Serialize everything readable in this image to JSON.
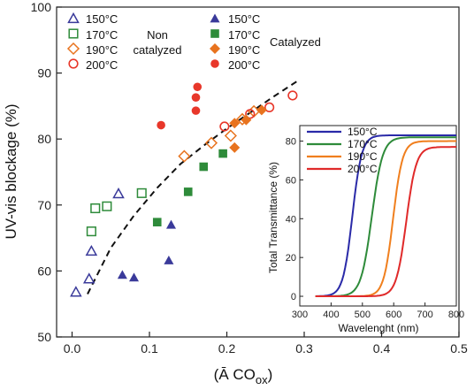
{
  "chart_data": [
    {
      "type": "scatter",
      "xlabel": "(Ā CO",
      "xlabel_sub": "ox",
      "xlabel_close": ")",
      "ylabel": "UV-vis blockage (%)",
      "xlim": [
        -0.02,
        0.5
      ],
      "ylim": [
        50,
        100
      ],
      "xticks": [
        0.0,
        0.1,
        0.2,
        0.3,
        0.4,
        0.5
      ],
      "xtick_labels": [
        "0.0",
        "0.1",
        "0.2",
        "0.3",
        "0.4",
        "0.5"
      ],
      "yticks": [
        50,
        60,
        70,
        80,
        90,
        100
      ],
      "ytick_labels": [
        "50",
        "60",
        "70",
        "80",
        "90",
        "100"
      ],
      "legend": {
        "group1_label_line1": "Non",
        "group1_label_line2": "catalyzed",
        "group2_label": "Catalyzed",
        "entries_left": [
          "150°C",
          "170°C",
          "190°C",
          "200°C"
        ],
        "entries_right": [
          "150°C",
          "170°C",
          "190°C",
          "200°C"
        ]
      },
      "series": [
        {
          "name": "150°C",
          "group": "non-catalyzed",
          "marker": "triangle",
          "filled": false,
          "color": "#3a3a9a",
          "points": [
            [
              0.005,
              56.8
            ],
            [
              0.022,
              58.8
            ],
            [
              0.025,
              63.0
            ],
            [
              0.06,
              71.7
            ]
          ]
        },
        {
          "name": "170°C",
          "group": "non-catalyzed",
          "marker": "square",
          "filled": false,
          "color": "#2e8b3a",
          "points": [
            [
              0.025,
              66.0
            ],
            [
              0.03,
              69.5
            ],
            [
              0.045,
              69.8
            ],
            [
              0.09,
              71.8
            ]
          ]
        },
        {
          "name": "190°C",
          "group": "non-catalyzed",
          "marker": "diamond",
          "filled": false,
          "color": "#e8731e",
          "points": [
            [
              0.145,
              77.4
            ],
            [
              0.18,
              79.4
            ],
            [
              0.205,
              80.5
            ],
            [
              0.22,
              83.0
            ],
            [
              0.235,
              84.2
            ]
          ]
        },
        {
          "name": "200°C",
          "group": "non-catalyzed",
          "marker": "circle",
          "filled": false,
          "color": "#e8372a",
          "points": [
            [
              0.197,
              81.9
            ],
            [
              0.23,
              83.8
            ],
            [
              0.255,
              84.8
            ],
            [
              0.285,
              86.6
            ]
          ]
        },
        {
          "name": "150°C",
          "group": "catalyzed",
          "marker": "triangle",
          "filled": true,
          "color": "#3a3a9a",
          "points": [
            [
              0.065,
              59.4
            ],
            [
              0.08,
              59.0
            ],
            [
              0.125,
              61.6
            ],
            [
              0.128,
              67.0
            ]
          ]
        },
        {
          "name": "170°C",
          "group": "catalyzed",
          "marker": "square",
          "filled": true,
          "color": "#2e8b3a",
          "points": [
            [
              0.11,
              67.4
            ],
            [
              0.15,
              72.0
            ],
            [
              0.17,
              75.8
            ],
            [
              0.195,
              77.8
            ]
          ]
        },
        {
          "name": "190°C",
          "group": "catalyzed",
          "marker": "diamond",
          "filled": true,
          "color": "#e8731e",
          "points": [
            [
              0.21,
              78.7
            ],
            [
              0.21,
              82.4
            ],
            [
              0.225,
              82.9
            ],
            [
              0.245,
              84.4
            ]
          ]
        },
        {
          "name": "200°C",
          "group": "catalyzed",
          "marker": "circle",
          "filled": true,
          "color": "#e8372a",
          "points": [
            [
              0.115,
              82.1
            ],
            [
              0.16,
              84.3
            ],
            [
              0.16,
              86.3
            ],
            [
              0.162,
              87.9
            ]
          ]
        }
      ],
      "trend_line": {
        "style": "dashed",
        "color": "#111111",
        "x": [
          0.02,
          0.05,
          0.08,
          0.11,
          0.14,
          0.17,
          0.2,
          0.23,
          0.26,
          0.29
        ],
        "y": [
          56.5,
          63.5,
          68.4,
          72.6,
          76.2,
          79.0,
          81.6,
          84.0,
          86.4,
          88.7
        ]
      }
    },
    {
      "type": "line",
      "inset": true,
      "xlabel": "Wavelenght (nm)",
      "ylabel": "Total Transmittance (%)",
      "xlim": [
        300,
        800
      ],
      "ylim": [
        -5,
        88
      ],
      "xticks": [
        300,
        400,
        500,
        600,
        700,
        800
      ],
      "xtick_labels": [
        "300",
        "400",
        "500",
        "600",
        "700",
        "800"
      ],
      "yticks": [
        0,
        20,
        40,
        60,
        80
      ],
      "ytick_labels": [
        "0",
        "20",
        "40",
        "60",
        "80"
      ],
      "series": [
        {
          "name": "150°C",
          "color": "#2a2aa8",
          "mid": 468,
          "width": 33,
          "max": 83
        },
        {
          "name": "170°C",
          "color": "#2e8b3a",
          "mid": 530,
          "width": 38,
          "max": 82
        },
        {
          "name": "190°C",
          "color": "#f07f1e",
          "mid": 598,
          "width": 33,
          "max": 80
        },
        {
          "name": "200°C",
          "color": "#e02a2a",
          "mid": 640,
          "width": 35,
          "max": 77
        }
      ]
    }
  ]
}
